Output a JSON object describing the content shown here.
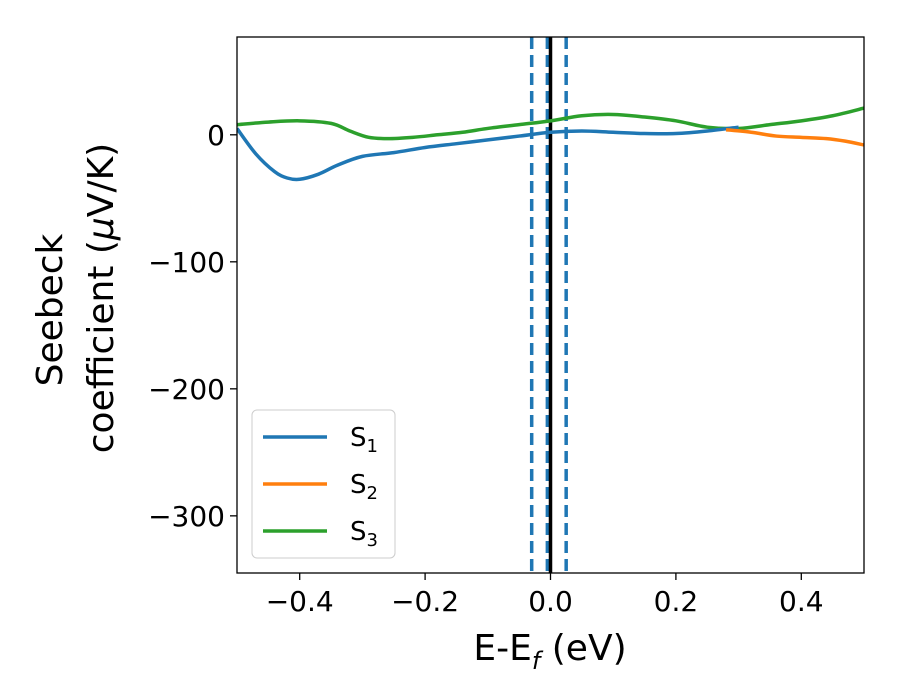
{
  "chart_data": {
    "type": "line",
    "title": "",
    "xlabel": {
      "main": "E-E",
      "sub": "f",
      "unit": " (eV)"
    },
    "ylabel": {
      "line1": "Seebeck",
      "line2_prefix": "coefficient  (",
      "mu": "μ",
      "line2_suffix": "V/K)"
    },
    "xlim": [
      -0.5,
      0.5
    ],
    "ylim": [
      -345,
      77
    ],
    "xticks": [
      -0.4,
      -0.2,
      0.0,
      0.2,
      0.4
    ],
    "xtick_labels": [
      "−0.4",
      "−0.2",
      "0.0",
      "0.2",
      "0.4"
    ],
    "yticks": [
      0,
      -100,
      -200,
      -300
    ],
    "ytick_labels": [
      "0",
      "−100",
      "−200",
      "−300"
    ],
    "legend_position": "lower-left",
    "series": [
      {
        "name": "S1",
        "label_main": "S",
        "label_sub": "1",
        "color": "#1f77b4",
        "x": [
          -0.5,
          -0.47,
          -0.44,
          -0.42,
          -0.4,
          -0.37,
          -0.34,
          -0.3,
          -0.25,
          -0.2,
          -0.15,
          -0.1,
          -0.05,
          0.0,
          0.05,
          0.1,
          0.15,
          0.2,
          0.25,
          0.3
        ],
        "y": [
          5,
          -15,
          -29,
          -34,
          -35,
          -31,
          -24,
          -17,
          -14,
          -10,
          -7,
          -4,
          -1,
          2,
          3,
          2,
          1,
          1,
          3,
          6
        ]
      },
      {
        "name": "S2",
        "label_main": "S",
        "label_sub": "2",
        "color": "#ff7f0e",
        "x": [
          0.28,
          0.32,
          0.36,
          0.4,
          0.44,
          0.47,
          0.5
        ],
        "y": [
          4,
          2,
          -1,
          -2,
          -3,
          -5,
          -8
        ]
      },
      {
        "name": "S3",
        "label_main": "S",
        "label_sub": "3",
        "color": "#2ca02c",
        "x": [
          -0.5,
          -0.45,
          -0.4,
          -0.35,
          -0.32,
          -0.29,
          -0.26,
          -0.22,
          -0.18,
          -0.14,
          -0.1,
          -0.05,
          0.0,
          0.05,
          0.1,
          0.15,
          0.2,
          0.25,
          0.3,
          0.35,
          0.4,
          0.45,
          0.5
        ],
        "y": [
          8,
          10,
          11,
          9,
          3,
          -2,
          -3,
          -2,
          0,
          2,
          5,
          8,
          11,
          15,
          16,
          14,
          11,
          6,
          5,
          8,
          11,
          15,
          21
        ]
      }
    ],
    "vertical_lines": [
      {
        "x": -0.03,
        "style": "dashed",
        "color": "#1f77b4"
      },
      {
        "x": -0.005,
        "style": "dashed",
        "color": "#1f77b4"
      },
      {
        "x": 0.0,
        "style": "solid",
        "color": "#000000"
      },
      {
        "x": 0.025,
        "style": "dashed",
        "color": "#1f77b4"
      }
    ]
  }
}
